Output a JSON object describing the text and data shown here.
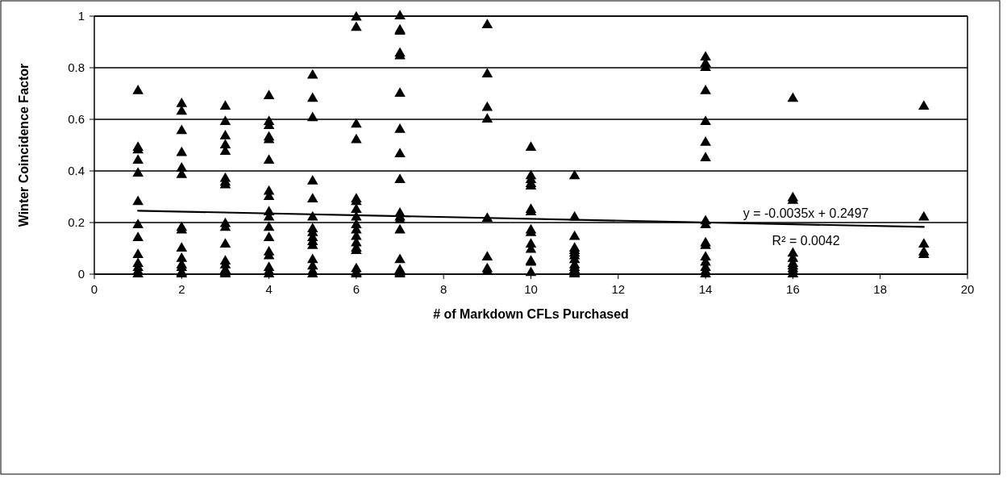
{
  "chart_data": {
    "type": "scatter",
    "xlabel": "# of Markdown CFLs Purchased",
    "ylabel": "Winter Coincidence Factor",
    "xlim": [
      0,
      20
    ],
    "xticks": [
      0,
      2,
      4,
      6,
      8,
      10,
      12,
      14,
      16,
      18,
      20
    ],
    "ylim": [
      0,
      1
    ],
    "yticks": [
      0,
      0.2,
      0.4,
      0.6,
      0.8,
      1
    ],
    "grid": "y",
    "marker": "triangle",
    "series": [
      {
        "color": "#000000",
        "x": [
          1,
          1,
          1,
          1,
          1,
          1,
          1,
          1,
          1,
          1,
          1,
          1,
          1,
          2,
          2,
          2,
          2,
          2,
          2,
          2,
          2,
          2,
          2,
          2,
          2,
          2,
          2,
          3,
          3,
          3,
          3,
          3,
          3,
          3,
          3,
          3,
          3,
          3,
          3,
          3,
          3,
          3,
          3,
          4,
          4,
          4,
          4,
          4,
          4,
          4,
          4,
          4,
          4,
          4,
          4,
          4,
          4,
          4,
          4,
          4,
          5,
          5,
          5,
          5,
          5,
          5,
          5,
          5,
          5,
          5,
          5,
          5,
          5,
          5,
          5,
          6,
          6,
          6,
          6,
          6,
          6,
          6,
          6,
          6,
          6,
          6,
          6,
          6,
          6,
          6,
          6,
          6,
          7,
          7,
          7,
          7,
          7,
          7,
          7,
          7,
          7,
          7,
          7,
          7,
          7,
          7,
          7,
          7,
          7,
          9,
          9,
          9,
          9,
          9,
          9,
          9,
          9,
          10,
          10,
          10,
          10,
          10,
          10,
          10,
          10,
          10,
          10,
          10,
          10,
          10,
          10,
          11,
          11,
          11,
          11,
          11,
          11,
          11,
          11,
          11,
          11,
          11,
          11,
          11,
          14,
          14,
          14,
          14,
          14,
          14,
          14,
          14,
          14,
          14,
          14,
          14,
          14,
          14,
          14,
          14,
          16,
          16,
          16,
          16,
          16,
          16,
          16,
          16,
          16,
          16,
          19,
          19,
          19,
          19,
          19
        ],
        "values": [
          0.71,
          0.49,
          0.48,
          0.44,
          0.39,
          0.28,
          0.19,
          0.14,
          0.075,
          0.04,
          0.025,
          0.01,
          0,
          0.66,
          0.63,
          0.555,
          0.47,
          0.41,
          0.385,
          0.18,
          0.17,
          0.1,
          0.06,
          0.035,
          0.025,
          0.005,
          0,
          0.65,
          0.59,
          0.535,
          0.5,
          0.475,
          0.37,
          0.355,
          0.345,
          0.195,
          0.18,
          0.115,
          0.05,
          0.035,
          0.015,
          0.005,
          0,
          0.69,
          0.59,
          0.575,
          0.53,
          0.52,
          0.44,
          0.32,
          0.3,
          0.24,
          0.22,
          0.18,
          0.14,
          0.085,
          0.07,
          0.025,
          0.01,
          0,
          0.77,
          0.68,
          0.605,
          0.36,
          0.29,
          0.22,
          0.175,
          0.16,
          0.14,
          0.125,
          0.11,
          0.055,
          0.03,
          0.01,
          0,
          0.995,
          0.955,
          0.58,
          0.52,
          0.29,
          0.28,
          0.25,
          0.22,
          0.19,
          0.17,
          0.145,
          0.12,
          0.1,
          0.09,
          0.02,
          0.005,
          0,
          1,
          0.945,
          0.94,
          0.855,
          0.845,
          0.7,
          0.56,
          0.465,
          0.365,
          0.235,
          0.22,
          0.21,
          0.17,
          0.055,
          0.015,
          0.005,
          0,
          0.965,
          0.775,
          0.645,
          0.6,
          0.215,
          0.065,
          0.02,
          0.01,
          0.49,
          0.38,
          0.365,
          0.35,
          0.34,
          0.25,
          0.24,
          0.17,
          0.16,
          0.115,
          0.095,
          0.05,
          0.045,
          0.005,
          0.38,
          0.22,
          0.145,
          0.1,
          0.09,
          0.08,
          0.07,
          0.055,
          0.035,
          0.025,
          0.015,
          0.005,
          0,
          0.84,
          0.815,
          0.8,
          0.71,
          0.59,
          0.51,
          0.45,
          0.205,
          0.19,
          0.12,
          0.11,
          0.065,
          0.045,
          0.025,
          0.01,
          0,
          0.68,
          0.295,
          0.285,
          0.08,
          0.06,
          0.04,
          0.03,
          0.02,
          0.01,
          0,
          0.65,
          0.22,
          0.115,
          0.085,
          0.075
        ]
      },
      {
        "type": "line",
        "marker": "none",
        "color": "#000000",
        "x": [
          1,
          19
        ],
        "values": [
          0.246,
          0.183
        ]
      }
    ],
    "annotations": [
      "y = -0.0035x + 0.2497",
      "R² = 0.0042"
    ]
  }
}
